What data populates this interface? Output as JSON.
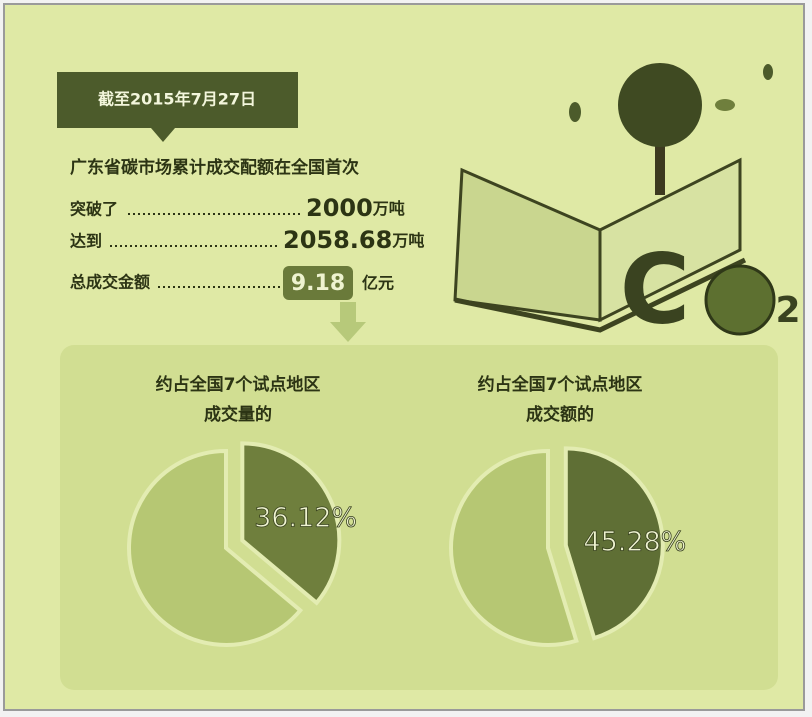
{
  "header": {
    "date_label": "截至2015年7月27日",
    "intro": "广东省碳市场累计成交配额在全国首次"
  },
  "stats": [
    {
      "label": "突破了",
      "value": 2000,
      "unit": "万吨"
    },
    {
      "label": "达到",
      "value": 2058.68,
      "unit": "万吨"
    },
    {
      "label": "总成交金额",
      "value": 9.18,
      "unit": "亿元"
    }
  ],
  "logo": {
    "letter": "C",
    "subscript": "2"
  },
  "chart_data": [
    {
      "type": "pie",
      "title_lines": [
        "约占全国7个试点地区",
        "成交量的"
      ],
      "values": [
        36.12,
        63.88
      ],
      "value_labels": [
        "36.12%",
        null
      ],
      "colors": [
        "#6f7f3d",
        "#b6c773"
      ]
    },
    {
      "type": "pie",
      "title_lines": [
        "约占全国7个试点地区",
        "成交额的"
      ],
      "values": [
        45.28,
        54.72
      ],
      "value_labels": [
        "45.28%",
        null
      ],
      "colors": [
        "#5f6f35",
        "#b6c773"
      ]
    }
  ]
}
